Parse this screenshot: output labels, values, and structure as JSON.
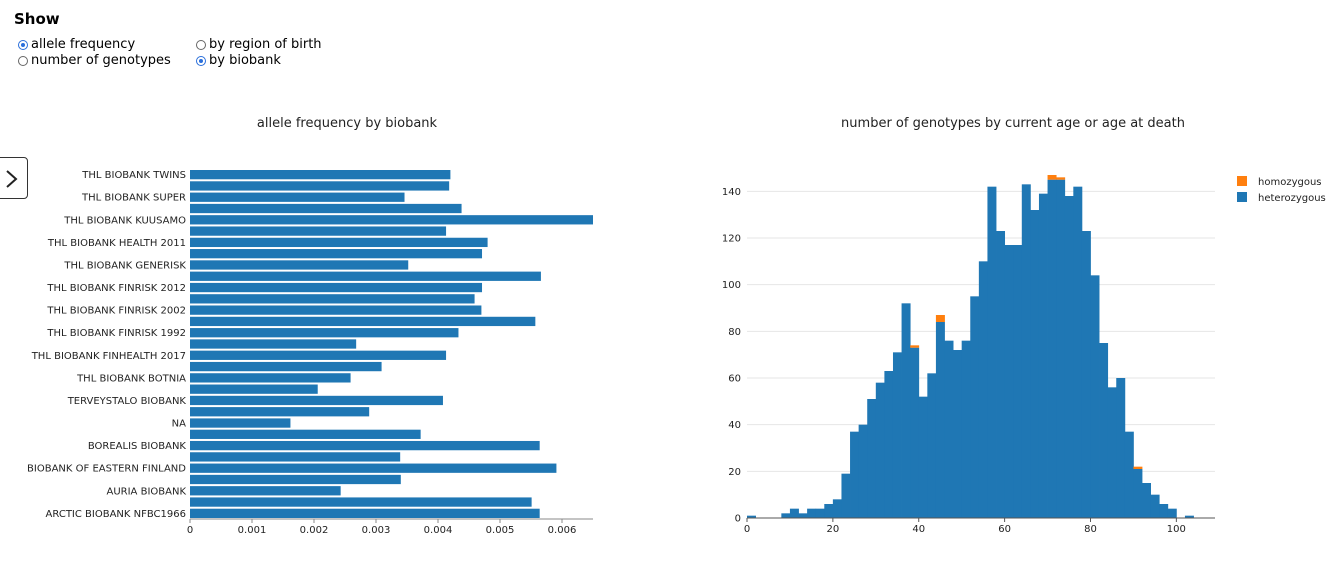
{
  "controls": {
    "title": "Show",
    "options": [
      {
        "label": "allele frequency",
        "checked": true
      },
      {
        "label": "by region of birth",
        "checked": false
      },
      {
        "label": "number of genotypes",
        "checked": false
      },
      {
        "label": "by biobank",
        "checked": true
      }
    ]
  },
  "chart_data": [
    {
      "type": "bar",
      "orientation": "horizontal",
      "title": "allele frequency by biobank",
      "categories": [
        "THL BIOBANK TWINS",
        "",
        "THL BIOBANK SUPER",
        "",
        "THL BIOBANK KUUSAMO",
        "",
        "THL BIOBANK HEALTH 2011",
        "",
        "THL BIOBANK GENERISK",
        "",
        "THL BIOBANK FINRISK 2012",
        "",
        "THL BIOBANK FINRISK 2002",
        "",
        "THL BIOBANK FINRISK 1992",
        "",
        "THL BIOBANK FINHEALTH 2017",
        "",
        "THL BIOBANK BOTNIA",
        "",
        "TERVEYSTALO BIOBANK",
        "",
        "NA",
        "",
        "BOREALIS BIOBANK",
        "",
        "BIOBANK OF EASTERN FINLAND",
        "",
        "AURIA BIOBANK",
        "",
        "ARCTIC BIOBANK NFBC1966"
      ],
      "values": [
        0.0042,
        0.00418,
        0.00346,
        0.00438,
        0.0065,
        0.00413,
        0.0048,
        0.00471,
        0.00352,
        0.00566,
        0.00471,
        0.00459,
        0.0047,
        0.00557,
        0.00433,
        0.00268,
        0.00413,
        0.00309,
        0.00259,
        0.00206,
        0.00408,
        0.00289,
        0.00162,
        0.00372,
        0.00564,
        0.00339,
        0.00591,
        0.0034,
        0.00243,
        0.00551,
        0.00564
      ],
      "xlim": [
        0,
        0.0065
      ],
      "xticks": [
        "0",
        "0.001",
        "0.002",
        "0.003",
        "0.004",
        "0.005",
        "0.006"
      ],
      "color": "#1f77b4"
    },
    {
      "type": "bar",
      "stacked": true,
      "title": "number of genotypes by current age or age at death",
      "bin_start": 0,
      "bin_width": 2,
      "xlim": [
        0,
        109
      ],
      "ylim": [
        0,
        150
      ],
      "xticks": [
        "0",
        "20",
        "40",
        "60",
        "80",
        "100"
      ],
      "yticks": [
        "0",
        "20",
        "40",
        "60",
        "80",
        "100",
        "120",
        "140"
      ],
      "legend_position": "top-right",
      "series": [
        {
          "name": "heterozygous",
          "color": "#1f77b4",
          "values": [
            1,
            0,
            0,
            0,
            2,
            4,
            2,
            4,
            4,
            6,
            8,
            19,
            37,
            40,
            51,
            58,
            63,
            71,
            92,
            73,
            52,
            62,
            84,
            76,
            72,
            76,
            95,
            110,
            142,
            123,
            117,
            117,
            143,
            132,
            139,
            145,
            145,
            138,
            142,
            123,
            104,
            75,
            56,
            60,
            37,
            21,
            15,
            10,
            6,
            4,
            0,
            1,
            0
          ]
        },
        {
          "name": "homozygous",
          "color": "#ff7f0e",
          "values": [
            0,
            0,
            0,
            0,
            0,
            0,
            0,
            0,
            0,
            0,
            0,
            0,
            0,
            0,
            0,
            0,
            0,
            0,
            0,
            1,
            0,
            0,
            3,
            0,
            0,
            0,
            0,
            0,
            0,
            0,
            0,
            0,
            0,
            0,
            0,
            2,
            1,
            0,
            0,
            0,
            0,
            0,
            0,
            0,
            0,
            1,
            0,
            0,
            0,
            0,
            0,
            0,
            0
          ]
        }
      ]
    }
  ]
}
